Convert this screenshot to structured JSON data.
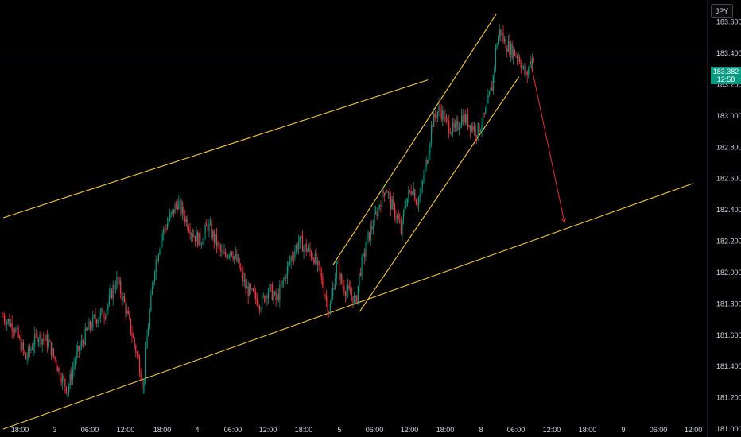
{
  "currency_label": "JPY",
  "last_price": {
    "value": "183.382",
    "countdown": "12:58",
    "color": "#089981"
  },
  "colors": {
    "up": "#089981",
    "down": "#f23645",
    "channel": "#f5c842",
    "projection": "#e03030"
  },
  "chart_data": {
    "type": "candlestick",
    "y_ticks": [
      "183.600",
      "183.400",
      "183.200",
      "183.000",
      "182.800",
      "182.600",
      "182.400",
      "182.200",
      "182.000",
      "181.800",
      "181.600",
      "181.400",
      "181.200",
      "181.000"
    ],
    "x_ticks": [
      "18:00",
      "3",
      "06:00",
      "12:00",
      "18:00",
      "4",
      "06:00",
      "12:00",
      "18:00",
      "5",
      "06:00",
      "12:00",
      "18:00",
      "8",
      "06:00",
      "12:00",
      "18:00",
      "9",
      "06:00",
      "12:00"
    ],
    "ylim": [
      181.0,
      183.7
    ],
    "current_price": 183.382,
    "price_path": [
      [
        0,
        181.72
      ],
      [
        3,
        181.65
      ],
      [
        6,
        181.45
      ],
      [
        9,
        181.6
      ],
      [
        12,
        181.55
      ],
      [
        14,
        181.42
      ],
      [
        16,
        181.3
      ],
      [
        17,
        181.25
      ],
      [
        19,
        181.45
      ],
      [
        22,
        181.62
      ],
      [
        24,
        181.7
      ],
      [
        27,
        181.75
      ],
      [
        29,
        181.9
      ],
      [
        30,
        181.95
      ],
      [
        32,
        181.8
      ],
      [
        34,
        181.6
      ],
      [
        36,
        181.4
      ],
      [
        37,
        181.25
      ],
      [
        38,
        181.6
      ],
      [
        40,
        182.05
      ],
      [
        42,
        182.25
      ],
      [
        44,
        182.35
      ],
      [
        46,
        182.45
      ],
      [
        48,
        182.35
      ],
      [
        50,
        182.25
      ],
      [
        52,
        182.2
      ],
      [
        54,
        182.3
      ],
      [
        56,
        182.2
      ],
      [
        58,
        182.1
      ],
      [
        60,
        182.15
      ],
      [
        62,
        182.05
      ],
      [
        64,
        181.9
      ],
      [
        66,
        181.85
      ],
      [
        68,
        181.8
      ],
      [
        70,
        181.9
      ],
      [
        72,
        181.82
      ],
      [
        74,
        181.95
      ],
      [
        76,
        182.1
      ],
      [
        78,
        182.2
      ],
      [
        80,
        182.15
      ],
      [
        82,
        182.1
      ],
      [
        84,
        181.95
      ],
      [
        85,
        181.85
      ],
      [
        86,
        181.75
      ],
      [
        87,
        181.9
      ],
      [
        88,
        182.05
      ],
      [
        89,
        181.95
      ],
      [
        90,
        181.9
      ],
      [
        92,
        181.85
      ],
      [
        93,
        181.8
      ],
      [
        94,
        182.0
      ],
      [
        96,
        182.2
      ],
      [
        98,
        182.35
      ],
      [
        100,
        182.5
      ],
      [
        101,
        182.55
      ],
      [
        102,
        182.45
      ],
      [
        104,
        182.35
      ],
      [
        105,
        182.25
      ],
      [
        106,
        182.45
      ],
      [
        108,
        182.55
      ],
      [
        109,
        182.45
      ],
      [
        110,
        182.5
      ],
      [
        112,
        182.75
      ],
      [
        113,
        182.95
      ],
      [
        115,
        183.05
      ],
      [
        117,
        182.95
      ],
      [
        119,
        182.9
      ],
      [
        121,
        183.0
      ],
      [
        123,
        182.95
      ],
      [
        125,
        182.9
      ],
      [
        127,
        183.0
      ],
      [
        129,
        183.2
      ],
      [
        130,
        183.45
      ],
      [
        131,
        183.55
      ],
      [
        132,
        183.48
      ],
      [
        134,
        183.42
      ],
      [
        136,
        183.38
      ],
      [
        137,
        183.3
      ],
      [
        138,
        183.25
      ],
      [
        139,
        183.35
      ],
      [
        140,
        183.382
      ]
    ],
    "channels": [
      {
        "name": "",
        "lines": [
          [
            [
              0,
              182.35
            ],
            [
              112,
              183.23
            ]
          ],
          [
            [
              0,
              181.0
            ],
            [
              182,
              182.57
            ]
          ]
        ]
      },
      {
        "name": "",
        "lines": [
          [
            [
              87,
              182.05
            ],
            [
              130,
              183.65
            ]
          ],
          [
            [
              94,
              181.75
            ],
            [
              136,
              183.25
            ]
          ]
        ]
      }
    ],
    "projection_arrow": {
      "from": [
        139,
        183.35
      ],
      "to": [
        148,
        182.32
      ]
    },
    "current_time_index": 140
  }
}
